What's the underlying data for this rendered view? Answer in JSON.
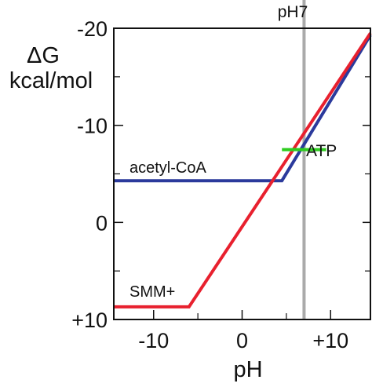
{
  "chart_data": {
    "type": "line",
    "xlabel": "pH",
    "ylabel_line1": "ΔG",
    "ylabel_line2": "kcal/mol",
    "xlim": [
      -14.5,
      14.5
    ],
    "ylim": [
      10,
      -20
    ],
    "x_ticks": [
      {
        "value": -10,
        "label": "-10"
      },
      {
        "value": 0,
        "label": "0"
      },
      {
        "value": 10,
        "label": "+10"
      }
    ],
    "y_ticks": [
      {
        "value": -20,
        "label": "-20"
      },
      {
        "value": -10,
        "label": "-10"
      },
      {
        "value": 0,
        "label": "0"
      },
      {
        "value": 10,
        "label": "+10"
      }
    ],
    "reference_line": {
      "x": 7,
      "label": "pH7",
      "color": "#aaaaaa"
    },
    "series": [
      {
        "name": "acetyl-CoA",
        "color": "#2b3a9c",
        "points": [
          [
            -14.5,
            -4.3
          ],
          [
            4.5,
            -4.3
          ],
          [
            14.5,
            -19.3
          ]
        ]
      },
      {
        "name": "SMM+",
        "color": "#e8202e",
        "points": [
          [
            -14.5,
            8.7
          ],
          [
            -6,
            8.7
          ],
          [
            14.5,
            -19.5
          ]
        ]
      }
    ],
    "marker": {
      "name": "ATP",
      "color": "#2ecc1f",
      "x_range": [
        4.5,
        9.5
      ],
      "y": -7.5
    }
  }
}
